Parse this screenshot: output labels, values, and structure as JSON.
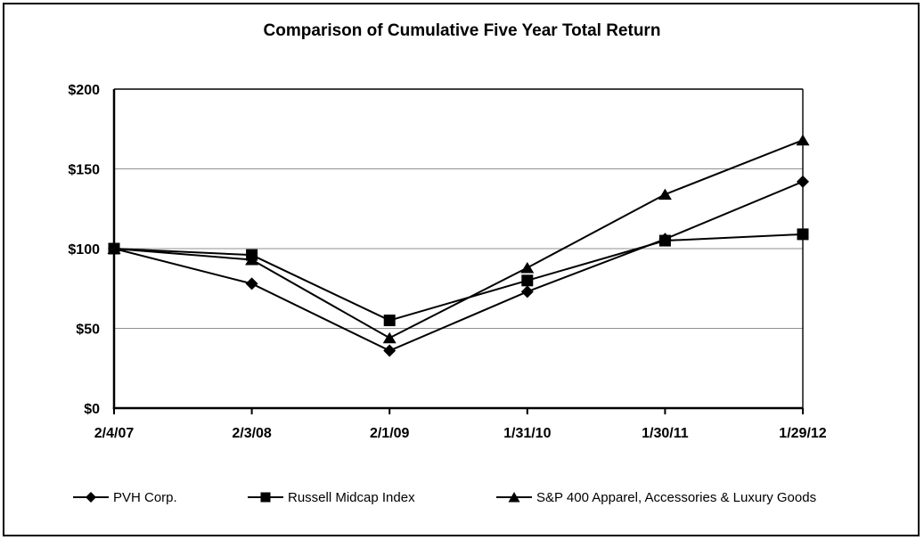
{
  "chart_data": {
    "type": "line",
    "title": "Comparison of Cumulative Five Year Total Return",
    "categories": [
      "2/4/07",
      "2/3/08",
      "2/1/09",
      "1/31/10",
      "1/30/11",
      "1/29/12"
    ],
    "series": [
      {
        "name": "PVH Corp.",
        "marker": "diamond",
        "color": "#000000",
        "values": [
          100,
          78,
          36,
          73,
          106,
          142
        ]
      },
      {
        "name": "Russell Midcap Index",
        "marker": "square",
        "color": "#000000",
        "values": [
          100,
          96,
          55,
          80,
          105,
          109
        ]
      },
      {
        "name": "S&P 400 Apparel, Accessories & Luxury Goods",
        "marker": "triangle",
        "color": "#000000",
        "values": [
          100,
          93,
          44,
          88,
          134,
          168
        ]
      }
    ],
    "ylim": [
      0,
      200
    ],
    "yticks": [
      {
        "value": 0,
        "label": "$0"
      },
      {
        "value": 50,
        "label": "$50"
      },
      {
        "value": 100,
        "label": "$100"
      },
      {
        "value": 150,
        "label": "$150"
      },
      {
        "value": 200,
        "label": "$200"
      }
    ],
    "grid": "horizontal",
    "gridline_color": "#909090",
    "axis_color": "#000000",
    "background_color": "#ffffff",
    "legend_position": "bottom"
  }
}
